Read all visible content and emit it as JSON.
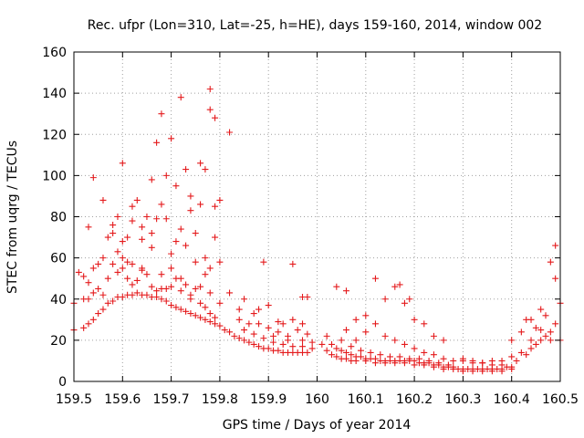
{
  "chart_data": {
    "type": "scatter",
    "title": "Rec. ufpr (Lon=310, Lat=-25, h=HE), days 159-160, 2014, window 002",
    "xlabel": "GPS time / Days of year 2014",
    "ylabel": "STEC from uqrg / TECUs",
    "xlim": [
      159.5,
      160.5
    ],
    "ylim": [
      0,
      160
    ],
    "xticks": [
      159.5,
      159.6,
      159.7,
      159.8,
      159.9,
      160.0,
      160.1,
      160.2,
      160.3,
      160.4,
      160.5
    ],
    "xtick_labels": [
      "159.5",
      "159.6",
      "159.7",
      "159.8",
      "159.9",
      "160",
      "160.1",
      "160.2",
      "160.3",
      "160.4",
      "160.5"
    ],
    "yticks": [
      0,
      20,
      40,
      60,
      80,
      100,
      120,
      140,
      160
    ],
    "ytick_labels": [
      "0",
      "20",
      "40",
      "60",
      "80",
      "100",
      "120",
      "140",
      "160"
    ],
    "grid": true,
    "legend": "none",
    "marker": "plus",
    "color": "#e41a1c",
    "series": [
      {
        "name": "STEC",
        "points": [
          [
            159.5,
            25
          ],
          [
            159.5,
            38
          ],
          [
            159.51,
            53
          ],
          [
            159.52,
            26
          ],
          [
            159.52,
            40
          ],
          [
            159.52,
            51
          ],
          [
            159.53,
            28
          ],
          [
            159.53,
            40
          ],
          [
            159.53,
            48
          ],
          [
            159.54,
            30
          ],
          [
            159.54,
            43
          ],
          [
            159.54,
            55
          ],
          [
            159.55,
            33
          ],
          [
            159.55,
            45
          ],
          [
            159.55,
            57
          ],
          [
            159.56,
            35
          ],
          [
            159.56,
            42
          ],
          [
            159.57,
            38
          ],
          [
            159.57,
            50
          ],
          [
            159.58,
            39
          ],
          [
            159.58,
            57
          ],
          [
            159.59,
            41
          ],
          [
            159.59,
            53
          ],
          [
            159.6,
            41
          ],
          [
            159.6,
            55
          ],
          [
            159.61,
            42
          ],
          [
            159.61,
            50
          ],
          [
            159.62,
            42
          ],
          [
            159.62,
            57
          ],
          [
            159.63,
            43
          ],
          [
            159.63,
            49
          ],
          [
            159.64,
            42
          ],
          [
            159.64,
            55
          ],
          [
            159.65,
            42
          ],
          [
            159.65,
            52
          ],
          [
            159.66,
            41
          ],
          [
            159.66,
            46
          ],
          [
            159.67,
            41
          ],
          [
            159.67,
            44
          ],
          [
            159.68,
            40
          ],
          [
            159.68,
            45
          ],
          [
            159.69,
            39
          ],
          [
            159.69,
            45
          ],
          [
            159.7,
            37
          ],
          [
            159.7,
            46
          ],
          [
            159.71,
            36
          ],
          [
            159.71,
            50
          ],
          [
            159.72,
            35
          ],
          [
            159.72,
            44
          ],
          [
            159.73,
            34
          ],
          [
            159.73,
            47
          ],
          [
            159.74,
            33
          ],
          [
            159.74,
            42
          ],
          [
            159.75,
            32
          ],
          [
            159.75,
            45
          ],
          [
            159.76,
            31
          ],
          [
            159.76,
            38
          ],
          [
            159.77,
            30
          ],
          [
            159.77,
            36
          ],
          [
            159.78,
            29
          ],
          [
            159.78,
            33
          ],
          [
            159.79,
            28
          ],
          [
            159.79,
            31
          ],
          [
            159.8,
            27
          ],
          [
            159.81,
            25
          ],
          [
            159.82,
            24
          ],
          [
            159.83,
            22
          ],
          [
            159.84,
            21
          ],
          [
            159.85,
            20
          ],
          [
            159.86,
            19
          ],
          [
            159.87,
            18
          ],
          [
            159.88,
            17
          ],
          [
            159.89,
            16
          ],
          [
            159.9,
            16
          ],
          [
            159.91,
            15
          ],
          [
            159.92,
            15
          ],
          [
            159.93,
            14
          ],
          [
            159.94,
            14
          ],
          [
            159.95,
            14
          ],
          [
            159.96,
            14
          ],
          [
            159.97,
            14
          ],
          [
            159.98,
            14
          ],
          [
            159.6,
            106
          ],
          [
            159.62,
            85
          ],
          [
            159.64,
            75
          ],
          [
            159.66,
            98
          ],
          [
            159.67,
            116
          ],
          [
            159.68,
            130
          ],
          [
            159.69,
            100
          ],
          [
            159.7,
            118
          ],
          [
            159.71,
            95
          ],
          [
            159.72,
            138
          ],
          [
            159.73,
            103
          ],
          [
            159.74,
            90
          ],
          [
            159.75,
            72
          ],
          [
            159.76,
            106
          ],
          [
            159.77,
            103
          ],
          [
            159.78,
            142
          ],
          [
            159.78,
            132
          ],
          [
            159.79,
            128
          ],
          [
            159.79,
            85
          ],
          [
            159.8,
            88
          ],
          [
            159.82,
            121
          ],
          [
            159.53,
            75
          ],
          [
            159.54,
            99
          ],
          [
            159.56,
            60
          ],
          [
            159.57,
            70
          ],
          [
            159.58,
            76
          ],
          [
            159.59,
            80
          ],
          [
            159.6,
            68
          ],
          [
            159.61,
            70
          ],
          [
            159.62,
            78
          ],
          [
            159.63,
            88
          ],
          [
            159.64,
            69
          ],
          [
            159.65,
            80
          ],
          [
            159.66,
            65
          ],
          [
            159.67,
            79
          ],
          [
            159.68,
            86
          ],
          [
            159.69,
            79
          ],
          [
            159.7,
            62
          ],
          [
            159.71,
            68
          ],
          [
            159.72,
            74
          ],
          [
            159.73,
            66
          ],
          [
            159.74,
            83
          ],
          [
            159.75,
            58
          ],
          [
            159.76,
            86
          ],
          [
            159.77,
            60
          ],
          [
            159.78,
            55
          ],
          [
            159.79,
            70
          ],
          [
            159.8,
            58
          ],
          [
            159.56,
            88
          ],
          [
            159.58,
            72
          ],
          [
            159.59,
            63
          ],
          [
            159.6,
            60
          ],
          [
            159.61,
            58
          ],
          [
            159.62,
            47
          ],
          [
            159.64,
            54
          ],
          [
            159.66,
            72
          ],
          [
            159.68,
            52
          ],
          [
            159.7,
            55
          ],
          [
            159.72,
            50
          ],
          [
            159.74,
            40
          ],
          [
            159.76,
            46
          ],
          [
            159.77,
            52
          ],
          [
            159.78,
            43
          ],
          [
            159.8,
            38
          ],
          [
            159.82,
            43
          ],
          [
            159.84,
            35
          ],
          [
            159.85,
            40
          ],
          [
            159.87,
            33
          ],
          [
            159.89,
            58
          ],
          [
            159.9,
            37
          ],
          [
            159.92,
            29
          ],
          [
            159.95,
            57
          ],
          [
            159.97,
            41
          ],
          [
            159.98,
            41
          ],
          [
            159.84,
            30
          ],
          [
            159.86,
            28
          ],
          [
            159.88,
            35
          ],
          [
            159.9,
            26
          ],
          [
            159.92,
            24
          ],
          [
            159.93,
            28
          ],
          [
            159.94,
            22
          ],
          [
            159.95,
            30
          ],
          [
            159.96,
            25
          ],
          [
            159.97,
            20
          ],
          [
            159.98,
            23
          ],
          [
            159.99,
            19
          ],
          [
            159.85,
            25
          ],
          [
            159.87,
            23
          ],
          [
            159.89,
            21
          ],
          [
            159.91,
            19
          ],
          [
            159.93,
            18
          ],
          [
            159.95,
            17
          ],
          [
            159.97,
            17
          ],
          [
            159.99,
            16
          ],
          [
            159.88,
            28
          ],
          [
            159.91,
            22
          ],
          [
            159.94,
            20
          ],
          [
            159.97,
            28
          ],
          [
            160.02,
            22
          ],
          [
            160.03,
            18
          ],
          [
            160.04,
            16
          ],
          [
            160.05,
            15
          ],
          [
            160.06,
            14
          ],
          [
            160.07,
            13
          ],
          [
            160.08,
            12
          ],
          [
            160.09,
            12
          ],
          [
            160.1,
            11
          ],
          [
            160.11,
            11
          ],
          [
            160.12,
            11
          ],
          [
            160.13,
            10
          ],
          [
            160.14,
            10
          ],
          [
            160.15,
            10
          ],
          [
            160.16,
            10
          ],
          [
            160.17,
            10
          ],
          [
            160.18,
            10
          ],
          [
            160.19,
            10
          ],
          [
            160.2,
            10
          ],
          [
            160.21,
            9
          ],
          [
            160.22,
            9
          ],
          [
            160.23,
            9
          ],
          [
            160.24,
            8
          ],
          [
            160.25,
            8
          ],
          [
            160.26,
            7
          ],
          [
            160.27,
            7
          ],
          [
            160.28,
            7
          ],
          [
            160.29,
            6
          ],
          [
            160.3,
            6
          ],
          [
            160.31,
            6
          ],
          [
            160.32,
            6
          ],
          [
            160.33,
            6
          ],
          [
            160.34,
            6
          ],
          [
            160.35,
            6
          ],
          [
            160.36,
            6
          ],
          [
            160.37,
            6
          ],
          [
            160.38,
            6
          ],
          [
            160.39,
            7
          ],
          [
            160.4,
            7
          ],
          [
            160.01,
            18
          ],
          [
            160.02,
            15
          ],
          [
            160.03,
            13
          ],
          [
            160.04,
            12
          ],
          [
            160.05,
            11
          ],
          [
            160.06,
            11
          ],
          [
            160.07,
            10
          ],
          [
            160.08,
            10
          ],
          [
            160.1,
            10
          ],
          [
            160.12,
            9
          ],
          [
            160.14,
            9
          ],
          [
            160.16,
            9
          ],
          [
            160.18,
            9
          ],
          [
            160.2,
            8
          ],
          [
            160.22,
            8
          ],
          [
            160.24,
            7
          ],
          [
            160.26,
            6
          ],
          [
            160.28,
            6
          ],
          [
            160.3,
            5
          ],
          [
            160.32,
            5
          ],
          [
            160.34,
            5
          ],
          [
            160.36,
            5
          ],
          [
            160.38,
            5
          ],
          [
            160.4,
            6
          ],
          [
            160.04,
            46
          ],
          [
            160.06,
            44
          ],
          [
            160.08,
            30
          ],
          [
            160.1,
            32
          ],
          [
            160.12,
            50
          ],
          [
            160.14,
            40
          ],
          [
            160.16,
            46
          ],
          [
            160.17,
            47
          ],
          [
            160.18,
            38
          ],
          [
            160.19,
            40
          ],
          [
            160.2,
            30
          ],
          [
            160.22,
            28
          ],
          [
            160.24,
            22
          ],
          [
            160.26,
            20
          ],
          [
            160.06,
            25
          ],
          [
            160.08,
            20
          ],
          [
            160.1,
            24
          ],
          [
            160.12,
            28
          ],
          [
            160.14,
            22
          ],
          [
            160.16,
            20
          ],
          [
            160.18,
            18
          ],
          [
            160.2,
            16
          ],
          [
            160.22,
            14
          ],
          [
            160.24,
            13
          ],
          [
            160.26,
            11
          ],
          [
            160.28,
            10
          ],
          [
            160.3,
            10
          ],
          [
            160.32,
            9
          ],
          [
            160.34,
            9
          ],
          [
            160.36,
            8
          ],
          [
            160.38,
            8
          ],
          [
            160.05,
            20
          ],
          [
            160.07,
            17
          ],
          [
            160.09,
            15
          ],
          [
            160.11,
            14
          ],
          [
            160.13,
            13
          ],
          [
            160.15,
            12
          ],
          [
            160.17,
            12
          ],
          [
            160.19,
            11
          ],
          [
            160.21,
            11
          ],
          [
            160.23,
            10
          ],
          [
            160.25,
            9
          ],
          [
            160.27,
            8
          ],
          [
            160.3,
            11
          ],
          [
            160.32,
            10
          ],
          [
            160.34,
            9
          ],
          [
            160.36,
            10
          ],
          [
            160.38,
            10
          ],
          [
            160.4,
            12
          ],
          [
            160.4,
            20
          ],
          [
            160.41,
            10
          ],
          [
            160.42,
            14
          ],
          [
            160.42,
            24
          ],
          [
            160.43,
            13
          ],
          [
            160.43,
            30
          ],
          [
            160.44,
            16
          ],
          [
            160.44,
            20
          ],
          [
            160.45,
            18
          ],
          [
            160.45,
            26
          ],
          [
            160.46,
            20
          ],
          [
            160.46,
            35
          ],
          [
            160.47,
            22
          ],
          [
            160.47,
            32
          ],
          [
            160.48,
            24
          ],
          [
            160.48,
            58
          ],
          [
            160.49,
            28
          ],
          [
            160.49,
            66
          ],
          [
            160.49,
            50
          ],
          [
            160.5,
            20
          ],
          [
            160.5,
            38
          ],
          [
            160.48,
            20
          ],
          [
            160.46,
            25
          ],
          [
            160.44,
            30
          ]
        ]
      }
    ]
  }
}
